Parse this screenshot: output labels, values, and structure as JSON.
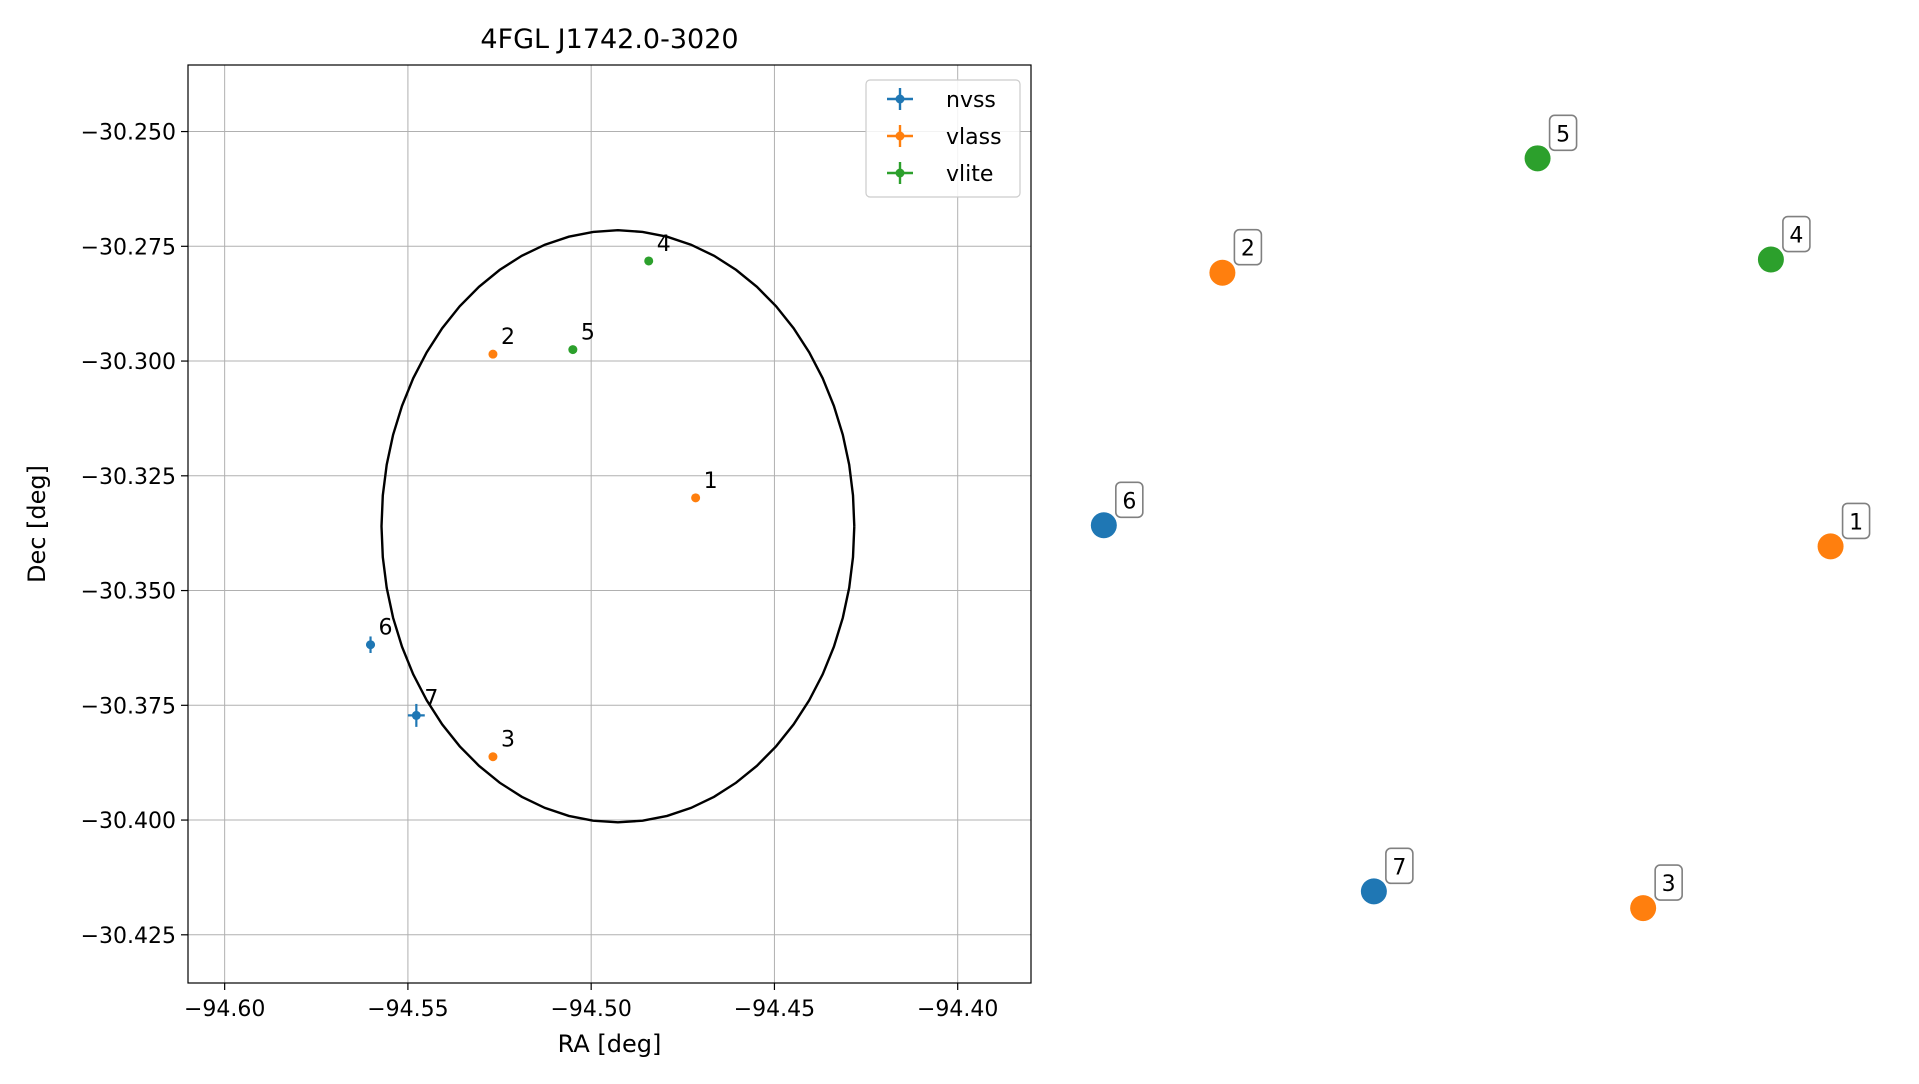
{
  "chart_data": [
    {
      "type": "scatter",
      "title": "4FGL J1742.0-3020",
      "xlabel": "RA [deg]",
      "ylabel": "Dec [deg]",
      "xlim": [
        -94.61,
        -94.38
      ],
      "ylim": [
        -30.4355,
        -30.2355
      ],
      "xticks": [
        -94.6,
        -94.55,
        -94.5,
        -94.45,
        -94.4
      ],
      "xtick_labels": [
        "−94.60",
        "−94.55",
        "−94.50",
        "−94.45",
        "−94.40"
      ],
      "yticks": [
        -30.25,
        -30.275,
        -30.3,
        -30.325,
        -30.35,
        -30.375,
        -30.4,
        -30.425
      ],
      "ytick_labels": [
        "−30.250",
        "−30.275",
        "−30.300",
        "−30.325",
        "−30.350",
        "−30.375",
        "−30.400",
        "−30.425"
      ],
      "grid": true,
      "legend_position": "top-right",
      "circle": {
        "center_ra": -94.4927,
        "center_dec": -30.336,
        "radius_deg": 0.0645,
        "color": "#000000"
      },
      "series": [
        {
          "name": "nvss",
          "color": "#1f77b4",
          "points": [
            {
              "label": "6",
              "ra": -94.5602,
              "dec": -30.3618,
              "ra_err": 0.0012,
              "dec_err": 0.0018
            },
            {
              "label": "7",
              "ra": -94.5477,
              "dec": -30.3772,
              "ra_err": 0.0023,
              "dec_err": 0.0025
            }
          ]
        },
        {
          "name": "vlass",
          "color": "#ff7f0e",
          "points": [
            {
              "label": "1",
              "ra": -94.4715,
              "dec": -30.3298
            },
            {
              "label": "2",
              "ra": -94.5268,
              "dec": -30.2985
            },
            {
              "label": "3",
              "ra": -94.5268,
              "dec": -30.3862
            }
          ]
        },
        {
          "name": "vlite",
          "color": "#2ca02c",
          "points": [
            {
              "label": "4",
              "ra": -94.4843,
              "dec": -30.2782
            },
            {
              "label": "5",
              "ra": -94.505,
              "dec": -30.2975
            }
          ]
        }
      ]
    },
    {
      "type": "scatter",
      "title": "",
      "axes_visible": false,
      "xlim": [
        0,
        1
      ],
      "ylim": [
        0,
        1
      ],
      "points": [
        {
          "label": "1",
          "x": 0.955,
          "y": 0.47,
          "color": "#ff7f0e"
        },
        {
          "label": "2",
          "x": 0.16,
          "y": 0.781,
          "color": "#ff7f0e"
        },
        {
          "label": "3",
          "x": 0.71,
          "y": 0.059,
          "color": "#ff7f0e"
        },
        {
          "label": "4",
          "x": 0.877,
          "y": 0.796,
          "color": "#2ca02c"
        },
        {
          "label": "5",
          "x": 0.572,
          "y": 0.911,
          "color": "#2ca02c"
        },
        {
          "label": "6",
          "x": 0.005,
          "y": 0.494,
          "color": "#1f77b4"
        },
        {
          "label": "7",
          "x": 0.358,
          "y": 0.078,
          "color": "#1f77b4"
        }
      ]
    }
  ]
}
